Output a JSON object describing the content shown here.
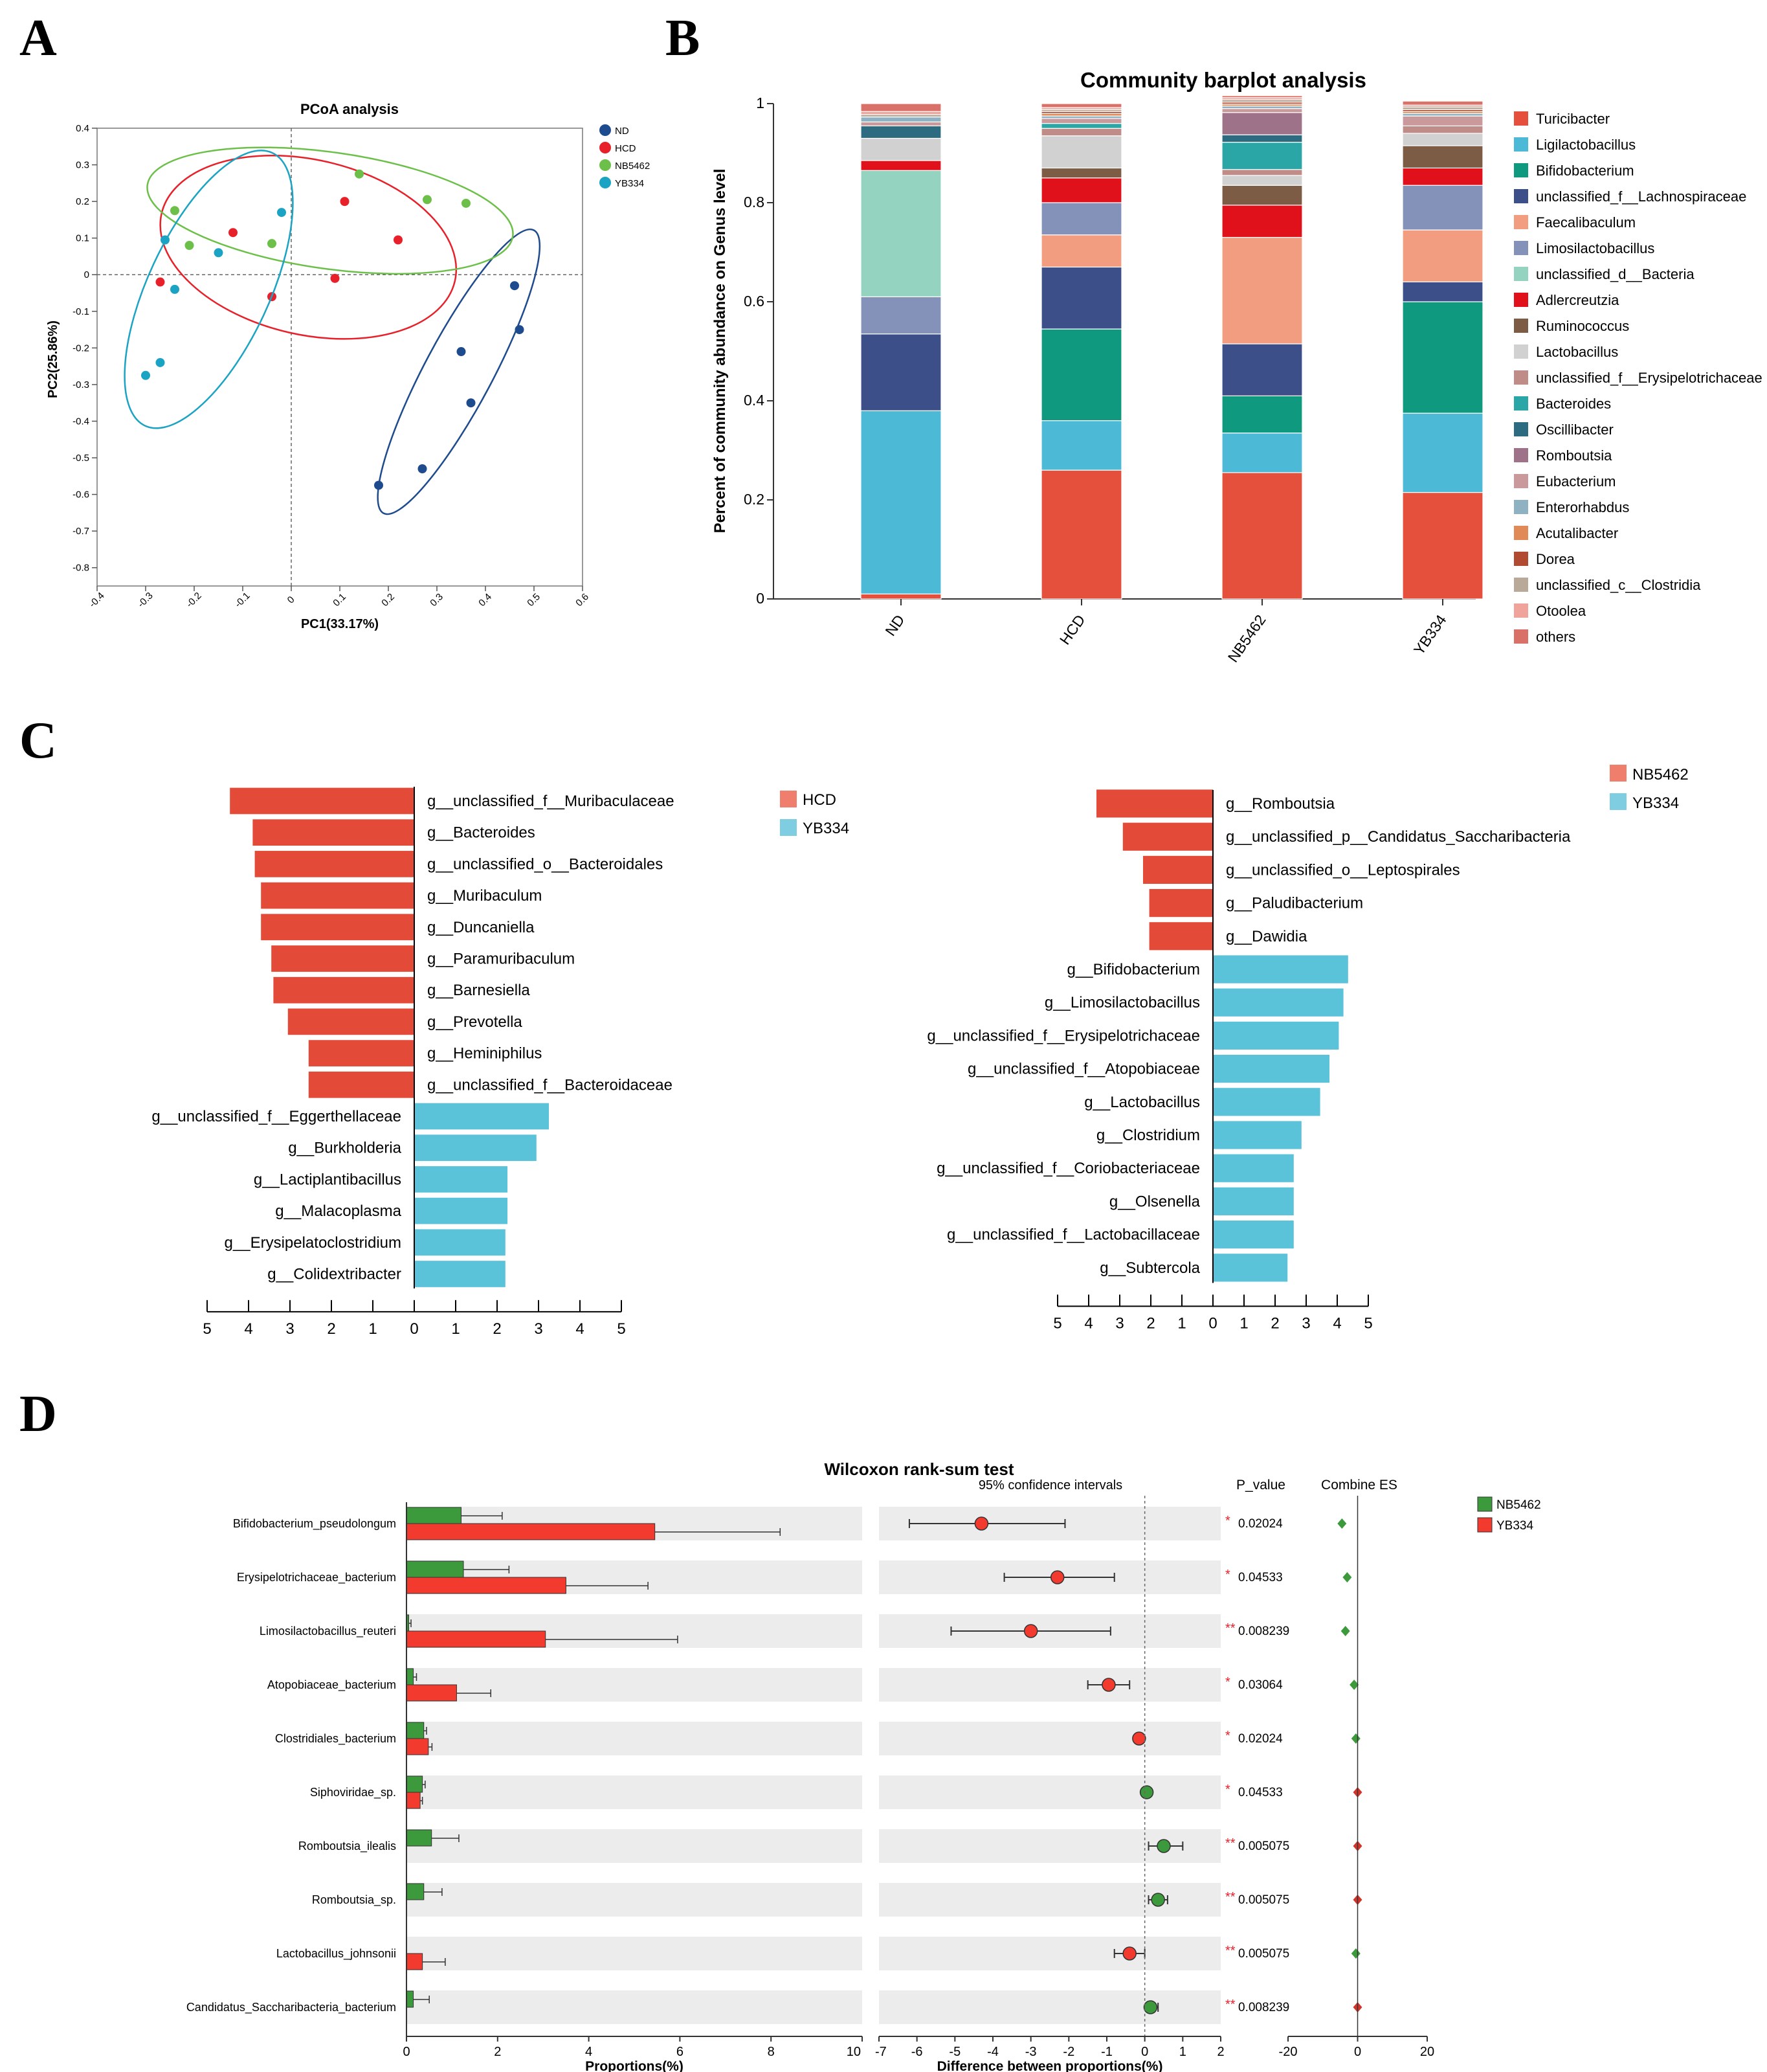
{
  "panel_labels": {
    "a": "A",
    "b": "B",
    "c": "C",
    "d": "D"
  },
  "colors": {
    "red": "#e74c3c",
    "blue": "#1e4b8e",
    "green": "#6cc04a",
    "cyan": "#1aa3c3",
    "c_red": "#e34b38",
    "c_cyan": "#5bc3d9",
    "c_legend_red": "#ef7e6d",
    "c_legend_cyan": "#7ecde0",
    "d_green": "#3c9a3c",
    "d_red": "#f23a2f",
    "grey_band": "#ececec"
  },
  "chart_data": [
    {
      "panel": "A",
      "type": "scatter",
      "title": "PCoA analysis",
      "xlabel": "PC1(33.17%)",
      "ylabel": "PC2(25.86%)",
      "xlim": [
        -0.4,
        0.6
      ],
      "ylim": [
        -0.85,
        0.4
      ],
      "xticks": [
        "-0.4",
        "-0.3",
        "-0.2",
        "-0.1",
        "0",
        "0.1",
        "0.2",
        "0.3",
        "0.4",
        "0.5",
        "0.6"
      ],
      "yticks": [
        "0.4",
        "0.3",
        "0.2",
        "0.1",
        "0",
        "-0.1",
        "-0.2",
        "-0.3",
        "-0.4",
        "-0.5",
        "-0.6",
        "-0.7",
        "-0.8"
      ],
      "series": [
        {
          "name": "ND",
          "color": "#1e4b8e",
          "x": [
            0.46,
            0.47,
            0.35,
            0.37,
            0.27,
            0.18
          ],
          "y": [
            -0.03,
            -0.15,
            -0.21,
            -0.35,
            -0.53,
            -0.575
          ],
          "ellipse": {
            "cx": 0.345,
            "cy": -0.265,
            "rx": 0.33,
            "ry": 0.07,
            "angle": -62
          }
        },
        {
          "name": "HCD",
          "color": "#e8202a",
          "x": [
            -0.27,
            -0.12,
            0.11,
            0.22,
            0.09,
            -0.04
          ],
          "y": [
            -0.02,
            0.115,
            0.2,
            0.095,
            -0.01,
            -0.06
          ],
          "ellipse": {
            "cx": 0.035,
            "cy": 0.075,
            "rx": 0.31,
            "ry": 0.18,
            "angle": 13
          }
        },
        {
          "name": "NB5462",
          "color": "#6cc04a",
          "x": [
            -0.24,
            -0.21,
            -0.04,
            0.14,
            0.28,
            0.36
          ],
          "y": [
            0.175,
            0.08,
            0.085,
            0.275,
            0.205,
            0.195
          ],
          "ellipse": {
            "cx": 0.08,
            "cy": 0.175,
            "rx": 0.38,
            "ry": 0.12,
            "angle": 8
          }
        },
        {
          "name": "YB334",
          "color": "#1aa3c3",
          "x": [
            -0.26,
            -0.24,
            -0.15,
            -0.02,
            -0.27,
            -0.3
          ],
          "y": [
            0.095,
            -0.04,
            0.06,
            0.17,
            -0.24,
            -0.275
          ],
          "ellipse": {
            "cx": -0.17,
            "cy": -0.04,
            "rx": 0.31,
            "ry": 0.125,
            "angle": -65
          }
        }
      ]
    },
    {
      "panel": "B",
      "type": "bar",
      "stacked": true,
      "title": "Community barplot analysis",
      "ylabel": "Percent of community abundance on Genus level",
      "ylim": [
        0,
        1
      ],
      "yticks": [
        "0",
        "0.2",
        "0.4",
        "0.6",
        "0.8",
        "1"
      ],
      "categories": [
        "ND",
        "HCD",
        "NB5462",
        "YB334"
      ],
      "series": [
        {
          "name": "Turicibacter",
          "color": "#e4503c",
          "values": [
            0.01,
            0.26,
            0.255,
            0.215
          ]
        },
        {
          "name": "Ligilactobacillus",
          "color": "#4cbad6",
          "values": [
            0.37,
            0.1,
            0.08,
            0.16
          ]
        },
        {
          "name": "Bifidobacterium",
          "color": "#0f9a80",
          "values": [
            0,
            0.185,
            0.075,
            0.225
          ]
        },
        {
          "name": "unclassified_f__Lachnospiraceae",
          "color": "#3c4f88",
          "values": [
            0.155,
            0.125,
            0.105,
            0.04
          ]
        },
        {
          "name": "Faecalibaculum",
          "color": "#f29d80",
          "values": [
            0,
            0.065,
            0.215,
            0.105
          ]
        },
        {
          "name": "Limosilactobacillus",
          "color": "#8491b8",
          "values": [
            0.075,
            0.065,
            0,
            0.09
          ]
        },
        {
          "name": "unclassified_d__Bacteria",
          "color": "#93d3c0",
          "values": [
            0.255,
            0,
            0,
            0
          ]
        },
        {
          "name": "Adlercreutzia",
          "color": "#e0111a",
          "values": [
            0.02,
            0.05,
            0.065,
            0.035
          ]
        },
        {
          "name": "Ruminococcus",
          "color": "#7d5c46",
          "values": [
            0,
            0.02,
            0.04,
            0.045
          ]
        },
        {
          "name": "Lactobacillus",
          "color": "#d1d1d1",
          "values": [
            0.045,
            0.065,
            0.02,
            0.025
          ]
        },
        {
          "name": "unclassified_f__Erysipelotrichaceae",
          "color": "#bf8c87",
          "values": [
            0,
            0.015,
            0.012,
            0.015
          ]
        },
        {
          "name": "Bacteroides",
          "color": "#2ba6a6",
          "values": [
            0,
            0.01,
            0.055,
            0
          ]
        },
        {
          "name": "Oscillibacter",
          "color": "#2d6b80",
          "values": [
            0.025,
            0,
            0.015,
            0
          ]
        },
        {
          "name": "Romboutsia",
          "color": "#9e7288",
          "values": [
            0,
            0,
            0.045,
            0
          ]
        },
        {
          "name": "Eubacterium",
          "color": "#c9999b",
          "values": [
            0.008,
            0.01,
            0.008,
            0.02
          ]
        },
        {
          "name": "Enterorhabdus",
          "color": "#8fb2c2",
          "values": [
            0.01,
            0.005,
            0.005,
            0.005
          ]
        },
        {
          "name": "Acutalibacter",
          "color": "#e08a58",
          "values": [
            0,
            0.005,
            0.004,
            0.004
          ]
        },
        {
          "name": "Dorea",
          "color": "#b04a31",
          "values": [
            0,
            0.004,
            0.004,
            0.004
          ]
        },
        {
          "name": "unclassified_c__Clostridia",
          "color": "#b8a998",
          "values": [
            0.005,
            0.004,
            0.005,
            0.005
          ]
        },
        {
          "name": "Otoolea",
          "color": "#f0a39a",
          "values": [
            0.006,
            0.004,
            0.004,
            0.004
          ]
        },
        {
          "name": "others",
          "color": "#da7168",
          "values": [
            0.016,
            0.008,
            0.004,
            0.008
          ]
        }
      ]
    },
    {
      "panel": "C-left",
      "type": "bar",
      "orientation": "horizontal",
      "legend": [
        "HCD",
        "YB334"
      ],
      "xticks": [
        "5",
        "4",
        "3",
        "2",
        "1",
        "0",
        "1",
        "2",
        "3",
        "4",
        "5"
      ],
      "categories": [
        "g__unclassified_f__Muribaculaceae",
        "g__Bacteroides",
        "g__unclassified_o__Bacteroidales",
        "g__Muribaculum",
        "g__Duncaniella",
        "g__Paramuribaculum",
        "g__Barnesiella",
        "g__Prevotella",
        "g__Heminiphilus",
        "g__unclassified_f__Bacteroidaceae",
        "g__unclassified_f__Eggerthellaceae",
        "g__Burkholderia",
        "g__Lactiplantibacillus",
        "g__Malacoplasma",
        "g__Erysipelatoclostridium",
        "g__Colidextribacter"
      ],
      "groups": [
        "HCD",
        "HCD",
        "HCD",
        "HCD",
        "HCD",
        "HCD",
        "HCD",
        "HCD",
        "HCD",
        "HCD",
        "YB334",
        "YB334",
        "YB334",
        "YB334",
        "YB334",
        "YB334"
      ],
      "values": [
        4.45,
        3.9,
        3.85,
        3.7,
        3.7,
        3.45,
        3.4,
        3.05,
        2.55,
        2.55,
        3.25,
        2.95,
        2.25,
        2.25,
        2.2,
        2.2
      ]
    },
    {
      "panel": "C-right",
      "type": "bar",
      "orientation": "horizontal",
      "legend": [
        "NB5462",
        "YB334"
      ],
      "xticks": [
        "5",
        "4",
        "3",
        "2",
        "1",
        "0",
        "1",
        "2",
        "3",
        "4",
        "5"
      ],
      "categories": [
        "g__Romboutsia",
        "g__unclassified_p__Candidatus_Saccharibacteria",
        "g__unclassified_o__Leptospirales",
        "g__Paludibacterium",
        "g__Dawidia",
        "g__Bifidobacterium",
        "g__Limosilactobacillus",
        "g__unclassified_f__Erysipelotrichaceae",
        "g__unclassified_f__Atopobiaceae",
        "g__Lactobacillus",
        "g__Clostridium",
        "g__unclassified_f__Coriobacteriaceae",
        "g__Olsenella",
        "g__unclassified_f__Lactobacillaceae",
        "g__Subtercola"
      ],
      "groups": [
        "NB5462",
        "NB5462",
        "NB5462",
        "NB5462",
        "NB5462",
        "YB334",
        "YB334",
        "YB334",
        "YB334",
        "YB334",
        "YB334",
        "YB334",
        "YB334",
        "YB334",
        "YB334"
      ],
      "values": [
        3.75,
        2.9,
        2.25,
        2.05,
        2.05,
        4.35,
        4.2,
        4.05,
        3.75,
        3.45,
        2.85,
        2.6,
        2.6,
        2.6,
        2.4
      ]
    },
    {
      "panel": "D",
      "type": "bar",
      "orientation": "horizontal",
      "title": "Wilcoxon rank-sum test",
      "legend": [
        "NB5462",
        "YB334"
      ],
      "xlabel": "Proportions(%)",
      "xlabel_diff": "Difference between proportions(%)",
      "ci_header": "95% confidence intervals",
      "p_header": "P_value",
      "es_header": "Combine ES",
      "prop_ticks": [
        "0",
        "2",
        "4",
        "6",
        "8",
        "10"
      ],
      "prop_xlim": [
        0,
        10
      ],
      "diff_ticks": [
        "-7",
        "-6",
        "-5",
        "-4",
        "-3",
        "-2",
        "-1",
        "0",
        "1",
        "2"
      ],
      "diff_xlim": [
        -7,
        2
      ],
      "es_ticks": [
        "-20",
        "0",
        "20"
      ],
      "es_xlim": [
        -20,
        20
      ],
      "categories": [
        "Bifidobacterium_pseudolongum",
        "Erysipelotrichaceae_bacterium",
        "Limosilactobacillus_reuteri",
        "Atopobiaceae_bacterium",
        "Clostridiales_bacterium",
        "Siphoviridae_sp.",
        "Romboutsia_ilealis",
        "Romboutsia_sp.",
        "Lactobacillus_johnsonii",
        "Candidatus_Saccharibacteria_bacterium"
      ],
      "nb5462": [
        1.2,
        1.25,
        0.05,
        0.15,
        0.38,
        0.35,
        0.55,
        0.38,
        0,
        0.15
      ],
      "nb5462_err": [
        0.9,
        1.0,
        0.05,
        0.07,
        0.06,
        0.06,
        0.6,
        0.4,
        0,
        0.35
      ],
      "yb334": [
        5.45,
        3.5,
        3.05,
        1.1,
        0.48,
        0.3,
        0,
        0,
        0.35,
        0
      ],
      "yb334_err": [
        2.75,
        1.8,
        2.9,
        0.75,
        0.08,
        0.05,
        0,
        0,
        0.5,
        0
      ],
      "diff": [
        -4.3,
        -2.3,
        -3.0,
        -0.95,
        -0.15,
        0.05,
        0.5,
        0.35,
        -0.4,
        0.15
      ],
      "diff_lo": [
        -6.2,
        -3.7,
        -5.1,
        -1.5,
        -0.15,
        0.05,
        0.1,
        0.1,
        -0.8,
        0.1
      ],
      "diff_hi": [
        -2.1,
        -0.8,
        -0.9,
        -0.4,
        -0.15,
        0.05,
        1.0,
        0.6,
        0.0,
        0.35
      ],
      "diff_color": [
        "yb334",
        "yb334",
        "yb334",
        "yb334",
        "yb334",
        "nb5462",
        "nb5462",
        "nb5462",
        "yb334",
        "nb5462"
      ],
      "stars": [
        "*",
        "*",
        "**",
        "*",
        "*",
        "*",
        "**",
        "**",
        "**",
        "**"
      ],
      "p_values": [
        "0.02024",
        "0.04533",
        "0.008239",
        "0.03064",
        "0.02024",
        "0.04533",
        "0.005075",
        "0.005075",
        "0.005075",
        "0.008239"
      ],
      "es": [
        -4.5,
        -3,
        -3.5,
        -1,
        -0.5,
        0,
        0,
        0,
        -0.5,
        0
      ],
      "es_color": [
        "nb5462",
        "nb5462",
        "nb5462",
        "nb5462",
        "nb5462",
        "yb334",
        "yb334",
        "yb334",
        "nb5462",
        "yb334"
      ]
    }
  ]
}
